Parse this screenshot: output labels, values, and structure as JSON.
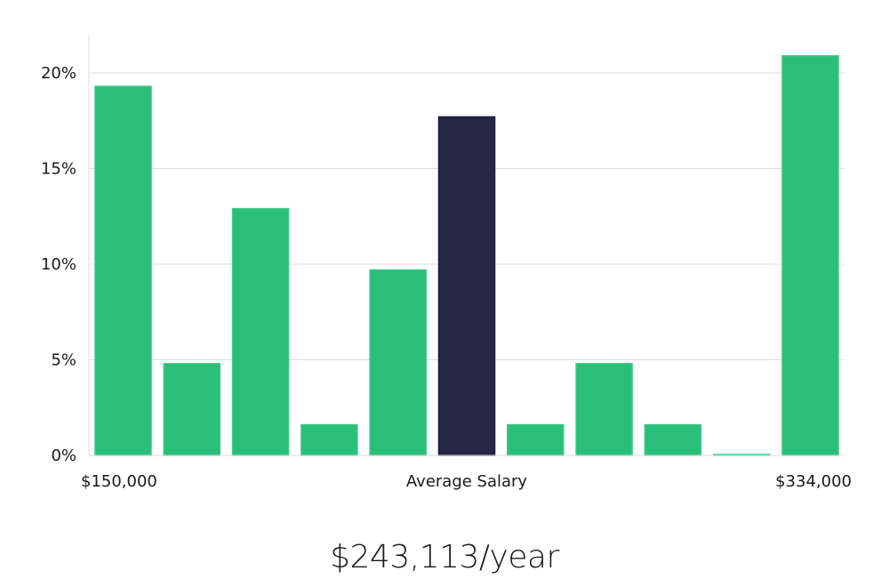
{
  "chart_data": {
    "type": "bar",
    "values": [
      19.3,
      4.8,
      12.9,
      1.6,
      9.7,
      17.7,
      1.6,
      4.8,
      1.6,
      0.0,
      20.9
    ],
    "highlight_index": 5,
    "ylim": [
      0,
      22
    ],
    "yticks": [
      0,
      5,
      10,
      15,
      20
    ],
    "ytick_labels": [
      "0%",
      "5%",
      "10%",
      "15%",
      "20%"
    ],
    "x_labels": {
      "min": "$150,000",
      "middle": "Average Salary",
      "max": "$334,000"
    },
    "colors": {
      "bar": "#29bf78",
      "highlight": "#282646",
      "grid": "#dddddd",
      "axis": "#dddddd"
    },
    "grid": true
  },
  "salary_text": "$243,113/year"
}
